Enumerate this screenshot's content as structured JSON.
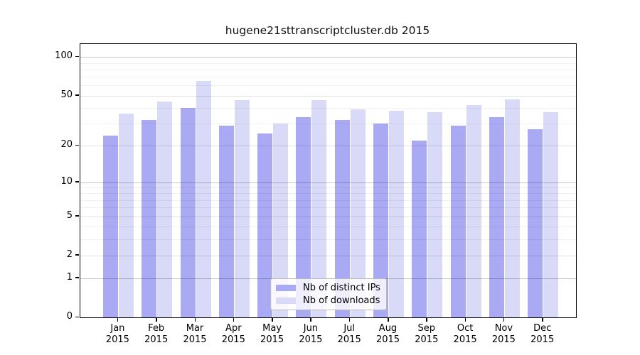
{
  "figure": {
    "background": "#ffffff"
  },
  "chart_data": {
    "type": "bar",
    "title": "hugene21sttranscriptcluster.db 2015",
    "xlabel": "",
    "ylabel": "",
    "y_scale": "log10(1+x)",
    "ylim": [
      0,
      126
    ],
    "y_ticks": [
      100,
      50,
      20,
      10,
      5,
      2,
      1,
      0
    ],
    "y_decade_gridlines": [
      100,
      10,
      1
    ],
    "y_major_gridlines": [
      50,
      20,
      5,
      2
    ],
    "y_minor_gridlines": [
      90,
      80,
      70,
      60,
      40,
      30,
      9,
      8,
      7,
      6,
      4,
      3
    ],
    "grid": true,
    "legend_position": "lower-center-inside",
    "categories": [
      {
        "month": "Jan",
        "year": "2015"
      },
      {
        "month": "Feb",
        "year": "2015"
      },
      {
        "month": "Mar",
        "year": "2015"
      },
      {
        "month": "Apr",
        "year": "2015"
      },
      {
        "month": "May",
        "year": "2015"
      },
      {
        "month": "Jun",
        "year": "2015"
      },
      {
        "month": "Jul",
        "year": "2015"
      },
      {
        "month": "Aug",
        "year": "2015"
      },
      {
        "month": "Sep",
        "year": "2015"
      },
      {
        "month": "Oct",
        "year": "2015"
      },
      {
        "month": "Nov",
        "year": "2015"
      },
      {
        "month": "Dec",
        "year": "2015"
      }
    ],
    "series": [
      {
        "name": "Nb of distinct IPs",
        "color": "#a9a9f4",
        "values": [
          24,
          32,
          40,
          29,
          25,
          34,
          32,
          30,
          22,
          29,
          34,
          27
        ]
      },
      {
        "name": "Nb of downloads",
        "color": "#d9d9f8",
        "values": [
          36,
          45,
          65,
          46,
          30,
          46,
          39,
          38,
          37,
          42,
          47,
          37
        ]
      }
    ]
  }
}
